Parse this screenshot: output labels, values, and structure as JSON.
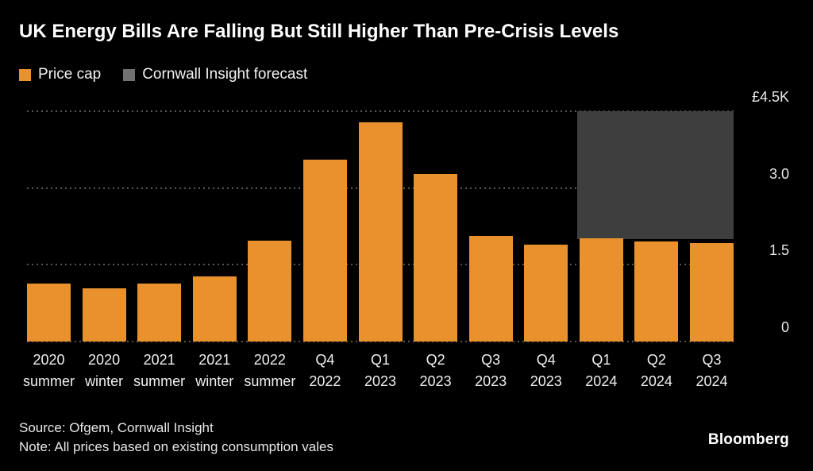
{
  "title": "UK Energy Bills Are Falling But Still Higher Than Pre-Crisis Levels",
  "legend": [
    {
      "label": "Price cap",
      "color": "#e8912d"
    },
    {
      "label": "Cornwall Insight forecast",
      "color": "#717171"
    }
  ],
  "source_line": "Source: Ofgem, Cornwall Insight",
  "note_line": "Note: All prices based on existing consumption vales",
  "brand": "Bloomberg",
  "chart_data": {
    "type": "bar",
    "title": "UK Energy Bills Are Falling But Still Higher Than Pre-Crisis Levels",
    "unit": "GBP thousands per year",
    "categories": [
      {
        "line1": "2020",
        "line2": "summer"
      },
      {
        "line1": "2020",
        "line2": "winter"
      },
      {
        "line1": "2021",
        "line2": "summer"
      },
      {
        "line1": "2021",
        "line2": "winter"
      },
      {
        "line1": "2022",
        "line2": "summer"
      },
      {
        "line1": "Q4",
        "line2": "2022"
      },
      {
        "line1": "Q1",
        "line2": "2023"
      },
      {
        "line1": "Q2",
        "line2": "2023"
      },
      {
        "line1": "Q3",
        "line2": "2023"
      },
      {
        "line1": "Q4",
        "line2": "2023"
      },
      {
        "line1": "Q1",
        "line2": "2024"
      },
      {
        "line1": "Q2",
        "line2": "2024"
      },
      {
        "line1": "Q3",
        "line2": "2024"
      }
    ],
    "values": [
      1.13,
      1.04,
      1.14,
      1.28,
      1.97,
      3.55,
      4.28,
      3.28,
      2.07,
      1.89,
      2.02,
      1.96,
      1.92
    ],
    "bar_color": "#e8912d",
    "ylim": [
      0,
      4.5
    ],
    "yticks": [
      {
        "label": "£4.5K",
        "value": 4.5
      },
      {
        "label": "3.0",
        "value": 3.0
      },
      {
        "label": "1.5",
        "value": 1.5
      },
      {
        "label": "0",
        "value": 0
      }
    ],
    "ytick_side": "right",
    "grid": "dotted-horizontal",
    "legend_position": "top-left",
    "forecast_band": {
      "label": "Cornwall Insight forecast",
      "start_category_index": 10,
      "end_category_index": 12,
      "top_value": 4.5,
      "bottom_value": 2.0,
      "color": "#3e3e3e"
    }
  }
}
